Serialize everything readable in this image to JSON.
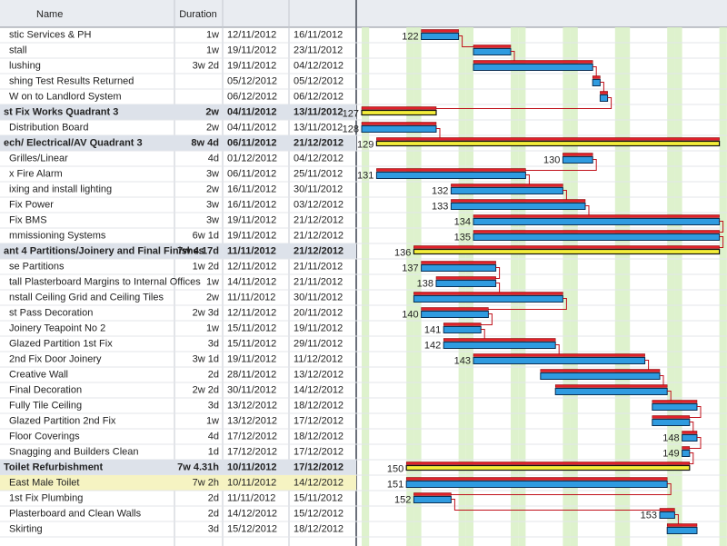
{
  "header": {
    "name": "Name",
    "duration": "Duration"
  },
  "rows": [
    {
      "name": "stic Services & PH",
      "duration": "1w",
      "start": "12/11/2012",
      "finish": "16/11/2012",
      "id": 122
    },
    {
      "name": "stall",
      "duration": "1w",
      "start": "19/11/2012",
      "finish": "23/11/2012"
    },
    {
      "name": "lushing",
      "duration": "3w 2d",
      "start": "19/11/2012",
      "finish": "04/12/2012"
    },
    {
      "name": "shing Test Results Returned",
      "start": "05/12/2012",
      "finish": "05/12/2012"
    },
    {
      "name": "W on to Landlord System",
      "start": "06/12/2012",
      "finish": "06/12/2012"
    },
    {
      "name": "st Fix Works Quadrant 3",
      "duration": "2w",
      "start": "04/11/2012",
      "finish": "13/11/2012",
      "summary": true,
      "id": 127
    },
    {
      "name": "Distribution Board",
      "duration": "2w",
      "start": "04/11/2012",
      "finish": "13/11/2012",
      "id": 128
    },
    {
      "name": "ech/ Electrical/AV Quadrant 3",
      "duration": "8w 4d",
      "start": "06/11/2012",
      "finish": "21/12/2012",
      "summary": true,
      "id": 129
    },
    {
      "name": "Grilles/Linear",
      "duration": "4d",
      "start": "01/12/2012",
      "finish": "04/12/2012",
      "id": 130
    },
    {
      "name": "x Fire Alarm",
      "duration": "3w",
      "start": "06/11/2012",
      "finish": "25/11/2012",
      "id": 131
    },
    {
      "name": "ixing and install lighting",
      "duration": "2w",
      "start": "16/11/2012",
      "finish": "30/11/2012",
      "id": 132
    },
    {
      "name": "Fix Power",
      "duration": "3w",
      "start": "16/11/2012",
      "finish": "03/12/2012",
      "id": 133
    },
    {
      "name": "Fix BMS",
      "duration": "3w",
      "start": "19/11/2012",
      "finish": "21/12/2012",
      "id": 134
    },
    {
      "name": "mmissioning Systems",
      "duration": "6w 1d",
      "start": "19/11/2012",
      "finish": "21/12/2012",
      "id": 135
    },
    {
      "name": "ant 4 Partitions/Joinery and Final Finishes",
      "duration": "7w 4.17d",
      "start": "11/11/2012",
      "finish": "21/12/2012",
      "summary": true,
      "id": 136
    },
    {
      "name": "se Partitions",
      "duration": "1w 2d",
      "start": "12/11/2012",
      "finish": "21/11/2012",
      "id": 137
    },
    {
      "name": "tall Plasterboard Margins to Internal Offices",
      "duration": "1w",
      "start": "14/11/2012",
      "finish": "21/11/2012",
      "id": 138
    },
    {
      "name": "nstall Ceiling Grid and Ceiling Tiles",
      "duration": "2w",
      "start": "11/11/2012",
      "finish": "30/11/2012"
    },
    {
      "name": "st Pass Decoration",
      "duration": "2w 3d",
      "start": "12/11/2012",
      "finish": "20/11/2012",
      "id": 140
    },
    {
      "name": "Joinery Teapoint No 2",
      "duration": "1w",
      "start": "15/11/2012",
      "finish": "19/11/2012",
      "id": 141
    },
    {
      "name": "Glazed Partition 1st Fix",
      "duration": "3d",
      "start": "15/11/2012",
      "finish": "29/11/2012",
      "id": 142
    },
    {
      "name": "2nd Fix Door Joinery",
      "duration": "3w 1d",
      "start": "19/11/2012",
      "finish": "11/12/2012",
      "id": 143
    },
    {
      "name": "Creative Wall",
      "duration": "2d",
      "start": "28/11/2012",
      "finish": "13/12/2012"
    },
    {
      "name": "Final Decoration",
      "duration": "2w 2d",
      "start": "30/11/2012",
      "finish": "14/12/2012"
    },
    {
      "name": "Fully Tile Ceiling",
      "duration": "3d",
      "start": "13/12/2012",
      "finish": "18/12/2012"
    },
    {
      "name": "Glazed Partition 2nd Fix",
      "duration": "1w",
      "start": "13/12/2012",
      "finish": "17/12/2012"
    },
    {
      "name": "Floor Coverings",
      "duration": "4d",
      "start": "17/12/2012",
      "finish": "18/12/2012",
      "id": 148
    },
    {
      "name": "Snagging and Builders Clean",
      "duration": "1d",
      "start": "17/12/2012",
      "finish": "17/12/2012",
      "id": 149
    },
    {
      "name": "Toilet Refurbishment",
      "duration": "7w 4.31h",
      "start": "10/11/2012",
      "finish": "17/12/2012",
      "summary": true,
      "id": 150
    },
    {
      "name": "East Male Toilet",
      "duration": "7w 2h",
      "start": "10/11/2012",
      "finish": "14/12/2012",
      "highlight": true,
      "id": 151
    },
    {
      "name": "1st Fix Plumbing",
      "duration": "2d",
      "start": "11/11/2012",
      "finish": "15/11/2012",
      "id": 152
    },
    {
      "name": "Plasterboard and Clean Walls",
      "duration": "2d",
      "start": "14/12/2012",
      "finish": "15/12/2012",
      "id": 153
    },
    {
      "name": "Skirting",
      "duration": "3d",
      "start": "15/12/2012",
      "finish": "18/12/2012"
    }
  ]
}
